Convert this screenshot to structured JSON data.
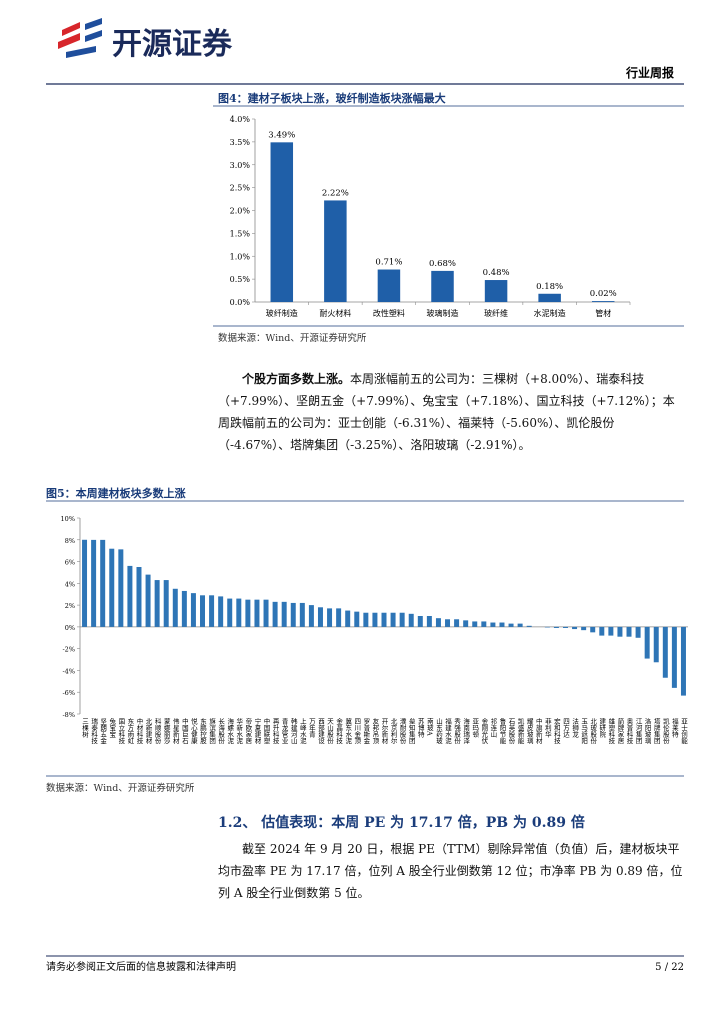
{
  "header": {
    "logo_text": "开源证券",
    "tag": "行业周报"
  },
  "chart_data": [
    {
      "type": "bar",
      "title": "图4：建材子板块上涨，玻纤制造板块涨幅最大",
      "source": "数据来源：Wind、开源证券研究所",
      "categories": [
        "玻纤制造",
        "耐火材料",
        "改性塑料",
        "玻璃制造",
        "玻纤维",
        "水泥制造",
        "管材"
      ],
      "values": [
        3.49,
        2.22,
        0.71,
        0.68,
        0.48,
        0.18,
        0.02
      ],
      "value_labels": [
        "3.49%",
        "2.22%",
        "0.71%",
        "0.68%",
        "0.48%",
        "0.18%",
        "0.02%"
      ],
      "color": "#1f5fa8",
      "ylim": [
        0,
        4
      ],
      "yticks": [
        {
          "value": 0,
          "label": "0.0%"
        },
        {
          "value": 0.5,
          "label": "0.5%"
        },
        {
          "value": 1,
          "label": "1.0%"
        },
        {
          "value": 1.5,
          "label": "1.5%"
        },
        {
          "value": 2,
          "label": "2.0%"
        },
        {
          "value": 2.5,
          "label": "2.5%"
        },
        {
          "value": 3,
          "label": "3.0%"
        },
        {
          "value": 3.5,
          "label": "3.5%"
        },
        {
          "value": 4,
          "label": "4.0%"
        }
      ],
      "grid": false
    },
    {
      "type": "bar",
      "title": "图5：本周建材板块多数上涨",
      "source": "数据来源：Wind、开源证券研究所",
      "categories": [
        "三棵树",
        "瑞泰科技",
        "坚朗五金",
        "兔宝宝",
        "国立科技",
        "东方雨虹",
        "中材科技",
        "北新建材",
        "科顺股份",
        "蒙娜丽莎",
        "伟星新材",
        "中国巨石",
        "悦心健康",
        "东鹏控股",
        "旗滨集团",
        "长海股份",
        "海螺水泥",
        "华新水泥",
        "帝欧家居",
        "宁夏建材",
        "中国联塑",
        "再升科技",
        "青龙管业",
        "韩建河山",
        "上峰水泥",
        "万年青",
        "西部建设",
        "天山股份",
        "金晶科技",
        "冀东水泥",
        "四川金顶",
        "罗普斯金",
        "友邦吊顶",
        "开尔新材",
        "北京利尔",
        "濮耐股份",
        "垒知集团",
        "苏博特",
        "南玻A",
        "山东药玻",
        "福建水泥",
        "秀强股份",
        "海南瑞泽",
        "亚玛顿",
        "金刚光伏",
        "祁连山",
        "鲁阳节能",
        "石英股份",
        "凯盛新能",
        "耀皮玻璃",
        "中旗新材",
        "菲利华",
        "宏和科技",
        "四方达",
        "法狮龙",
        "玉马遮阳",
        "北玻股份",
        "建研院",
        "雄塑科技",
        "箭牌家居",
        "奥普科技",
        "江河集团",
        "洛阳玻璃",
        "塔牌集团",
        "凯伦股份",
        "福莱特",
        "亚士创能"
      ],
      "values": [
        8.0,
        7.99,
        7.99,
        7.18,
        7.12,
        5.6,
        5.5,
        4.8,
        4.3,
        4.3,
        3.5,
        3.3,
        3.1,
        2.9,
        2.9,
        2.8,
        2.6,
        2.6,
        2.5,
        2.5,
        2.5,
        2.3,
        2.3,
        2.2,
        2.2,
        2.0,
        1.8,
        1.7,
        1.7,
        1.5,
        1.4,
        1.3,
        1.3,
        1.3,
        1.3,
        1.3,
        1.2,
        1.0,
        1.0,
        0.8,
        0.7,
        0.7,
        0.6,
        0.5,
        0.5,
        0.4,
        0.4,
        0.3,
        0.3,
        0.1,
        0,
        -0.05,
        -0.1,
        -0.1,
        -0.2,
        -0.3,
        -0.5,
        -0.8,
        -0.8,
        -0.9,
        -0.9,
        -1.0,
        -2.91,
        -3.25,
        -4.67,
        -5.6,
        -6.31
      ],
      "color": "#2e75b6",
      "ylim": [
        -8,
        10
      ],
      "yticks": [
        {
          "value": -8,
          "label": "-8%"
        },
        {
          "value": -6,
          "label": "-6%"
        },
        {
          "value": -4,
          "label": "-4%"
        },
        {
          "value": -2,
          "label": "-2%"
        },
        {
          "value": 0,
          "label": "0%"
        },
        {
          "value": 2,
          "label": "2%"
        },
        {
          "value": 4,
          "label": "4%"
        },
        {
          "value": 6,
          "label": "6%"
        },
        {
          "value": 8,
          "label": "8%"
        },
        {
          "value": 10,
          "label": "10%"
        }
      ],
      "grid": false
    }
  ],
  "paragraph1": {
    "lead": "个股方面多数上涨。",
    "text": "本周涨幅前五的公司为：三棵树（+8.00%）、瑞泰科技（+7.99%）、坚朗五金（+7.99%）、兔宝宝（+7.18%）、国立科技（+7.12%）；本周跌幅前五的公司为：亚士创能（-6.31%）、福莱特（-5.60%）、凯伦股份（-4.67%）、塔牌集团（-3.25%）、洛阳玻璃（-2.91%）。"
  },
  "section": {
    "heading": "1.2、 估值表现：本周 PE 为 17.17 倍，PB 为 0.89 倍"
  },
  "paragraph2": "截至 2024 年 9 月 20 日，根据 PE（TTM）剔除异常值（负值）后，建材板块平均市盈率 PE 为 17.17 倍，位列 A 股全行业倒数第 12 位；市净率 PB 为 0.89 倍，位列 A 股全行业倒数第 5 位。",
  "footer": {
    "disclaimer": "请务必参阅正文后面的信息披露和法律声明",
    "page": "5 / 22"
  }
}
